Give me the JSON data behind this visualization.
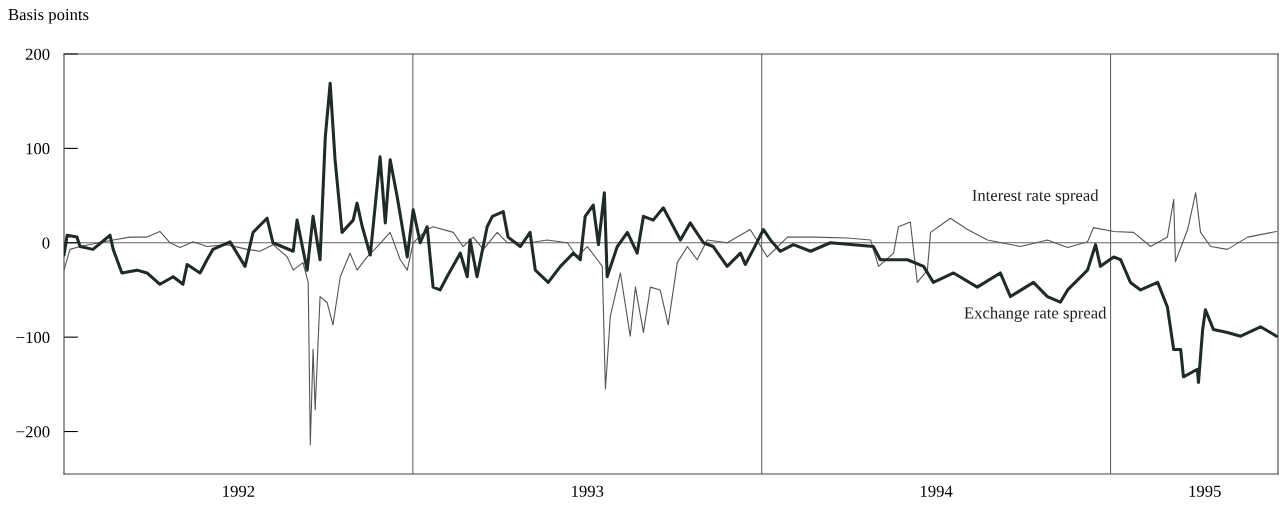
{
  "chart_data": {
    "type": "line",
    "ylabel": "Basis points",
    "xlim": [
      1992,
      1995.48
    ],
    "ylim": [
      -245,
      200
    ],
    "xticks": [
      {
        "value": 1992.5,
        "label": "1992"
      },
      {
        "value": 1993.5,
        "label": "1993"
      },
      {
        "value": 1994.5,
        "label": "1994"
      },
      {
        "value": 1995.27,
        "label": "1995"
      }
    ],
    "yticks": [
      200,
      100,
      0,
      {
        "value": -100,
        "label": "−100"
      },
      {
        "value": -200,
        "label": "−200"
      }
    ],
    "grid": false,
    "legend": false,
    "ref_lines": [
      {
        "axis": "y",
        "value": 0
      },
      {
        "axis": "x",
        "value": 1993
      },
      {
        "axis": "x",
        "value": 1994
      },
      {
        "axis": "x",
        "value": 1995
      }
    ],
    "series": [
      {
        "name": "Interest rate spread",
        "color": "#555555",
        "x": [
          1992.0,
          1992.017,
          1992.046,
          1992.141,
          1992.189,
          1992.238,
          1992.275,
          1992.304,
          1992.333,
          1992.37,
          1992.41,
          1992.467,
          1992.525,
          1992.562,
          1992.599,
          1992.64,
          1992.657,
          1992.685,
          1992.7,
          1992.706,
          1992.714,
          1992.72,
          1992.734,
          1992.754,
          1992.771,
          1992.792,
          1992.82,
          1992.84,
          1992.869,
          1992.898,
          1992.935,
          1992.964,
          1992.984,
          1993.001,
          1993.041,
          1993.058,
          1993.116,
          1993.144,
          1993.173,
          1993.202,
          1993.242,
          1993.271,
          1993.336,
          1993.385,
          1993.443,
          1993.471,
          1993.5,
          1993.529,
          1993.543,
          1993.552,
          1993.566,
          1993.595,
          1993.623,
          1993.638,
          1993.661,
          1993.681,
          1993.709,
          1993.732,
          1993.758,
          1993.787,
          1993.815,
          1993.844,
          1993.901,
          1993.967,
          1994.016,
          1994.074,
          1994.148,
          1994.246,
          1994.312,
          1994.335,
          1994.378,
          1994.392,
          1994.426,
          1994.446,
          1994.475,
          1994.484,
          1994.541,
          1994.59,
          1994.647,
          1994.742,
          1994.819,
          1994.877,
          1994.934,
          1994.951,
          1995.009,
          1995.066,
          1995.115,
          1995.163,
          1995.181,
          1995.186,
          1995.221,
          1995.244,
          1995.258,
          1995.287,
          1995.335,
          1995.393,
          1995.476
        ],
        "values": [
          -29,
          -7,
          -4,
          3,
          6,
          6,
          12,
          0,
          -5,
          1,
          -4,
          -2,
          -7,
          -9,
          -2,
          -15,
          -29,
          -21,
          -42,
          -214,
          -113,
          -177,
          -57,
          -63,
          -87,
          -36,
          -11,
          -29,
          -15,
          -4,
          11,
          -18,
          -29,
          0,
          14,
          17,
          11,
          -4,
          6,
          -7,
          11,
          0,
          0,
          3,
          0,
          -15,
          -4,
          -18,
          -25,
          -155,
          -78,
          -32,
          -99,
          -47,
          -95,
          -47,
          -50,
          -87,
          -21,
          -4,
          -18,
          3,
          0,
          14,
          -15,
          6,
          6,
          5,
          3,
          -25,
          -11,
          17,
          22,
          -42,
          -29,
          11,
          26,
          14,
          3,
          -4,
          3,
          -5,
          1,
          16,
          12,
          11,
          -4,
          6,
          46,
          -20,
          14,
          53,
          11,
          -4,
          -7,
          6,
          12
        ]
      },
      {
        "name": "Exchange rate spread",
        "color": "#1f2b29",
        "x": [
          1992.0,
          1992.009,
          1992.037,
          1992.046,
          1992.083,
          1992.132,
          1992.141,
          1992.166,
          1992.209,
          1992.238,
          1992.275,
          1992.313,
          1992.341,
          1992.353,
          1992.39,
          1992.41,
          1992.427,
          1992.476,
          1992.519,
          1992.542,
          1992.582,
          1992.599,
          1992.657,
          1992.668,
          1992.697,
          1992.714,
          1992.734,
          1992.749,
          1992.763,
          1992.777,
          1992.797,
          1992.829,
          1992.84,
          1992.855,
          1992.878,
          1992.906,
          1992.921,
          1992.935,
          1992.955,
          1992.984,
          1993.001,
          1993.021,
          1993.041,
          1993.058,
          1993.078,
          1993.098,
          1993.136,
          1993.156,
          1993.164,
          1993.184,
          1993.213,
          1993.228,
          1993.259,
          1993.273,
          1993.308,
          1993.336,
          1993.351,
          1993.388,
          1993.423,
          1993.46,
          1993.48,
          1993.494,
          1993.517,
          1993.532,
          1993.549,
          1993.557,
          1993.586,
          1993.615,
          1993.643,
          1993.661,
          1993.689,
          1993.718,
          1993.767,
          1993.795,
          1993.833,
          1993.861,
          1993.901,
          1993.939,
          1993.953,
          1993.976,
          1994.005,
          1994.025,
          1994.053,
          1994.091,
          1994.14,
          1994.197,
          1994.32,
          1994.34,
          1994.418,
          1994.464,
          1994.492,
          1994.55,
          1994.618,
          1994.684,
          1994.713,
          1994.779,
          1994.819,
          1994.856,
          1994.877,
          1994.934,
          1994.957,
          1994.971,
          1995.009,
          1995.029,
          1995.057,
          1995.086,
          1995.135,
          1995.163,
          1995.181,
          1995.201,
          1995.209,
          1995.249,
          1995.252,
          1995.264,
          1995.272,
          1995.295,
          1995.335,
          1995.373,
          1995.43,
          1995.476
        ],
        "values": [
          -13,
          8,
          6,
          -4,
          -7,
          8,
          -7,
          -32,
          -29,
          -32,
          -44,
          -36,
          -44,
          -23,
          -32,
          -18,
          -7,
          1,
          -25,
          11,
          26,
          0,
          -9,
          24,
          -29,
          28,
          -18,
          112,
          169,
          88,
          11,
          24,
          42,
          17,
          -13,
          91,
          21,
          88,
          49,
          -15,
          35,
          0,
          17,
          -47,
          -50,
          -36,
          -11,
          -36,
          3,
          -36,
          17,
          28,
          33,
          6,
          -4,
          11,
          -29,
          -42,
          -25,
          -11,
          -18,
          28,
          40,
          -2,
          53,
          -36,
          -4,
          11,
          -11,
          28,
          24,
          37,
          3,
          21,
          0,
          -4,
          -25,
          -11,
          -23,
          -7,
          14,
          3,
          -9,
          -2,
          -9,
          0,
          -4,
          -18,
          -18,
          -25,
          -42,
          -32,
          -47,
          -32,
          -57,
          -42,
          -57,
          -63,
          -50,
          -29,
          -2,
          -25,
          -15,
          -18,
          -42,
          -50,
          -42,
          -68,
          -113,
          -113,
          -142,
          -134,
          -148,
          -92,
          -71,
          -92,
          -95,
          -99,
          -89,
          -99
        ]
      }
    ]
  }
}
